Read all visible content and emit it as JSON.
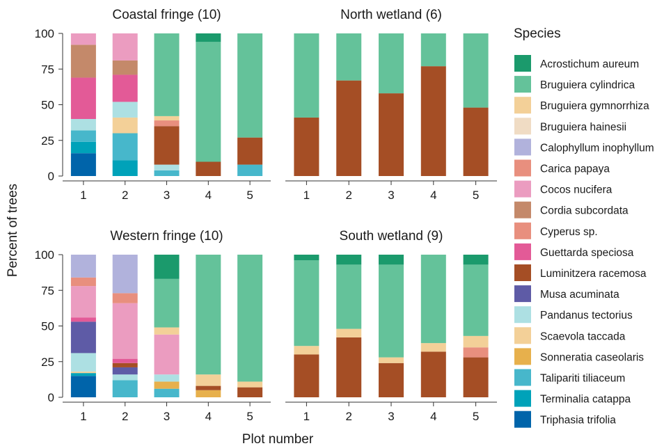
{
  "chart_data": {
    "type": "bar",
    "stacked": true,
    "xlabel": "Plot number",
    "ylabel": "Percent of trees",
    "ylim": [
      0,
      100
    ],
    "yticks": [
      0,
      25,
      50,
      75,
      100
    ],
    "categories": [
      "1",
      "2",
      "3",
      "4",
      "5"
    ],
    "legend": {
      "title": "Species",
      "placement": "right",
      "items": [
        {
          "name": "Acrostichum aureum",
          "color": "#1b9a6c"
        },
        {
          "name": "Bruguiera cylindrica",
          "color": "#64c29a"
        },
        {
          "name": "Bruguiera gymnorrhiza",
          "color": "#f3d098"
        },
        {
          "name": "Bruguiera hainesii",
          "color": "#f0dcc4"
        },
        {
          "name": "Calophyllum inophyllum",
          "color": "#b1b2dc"
        },
        {
          "name": "Carica papaya",
          "color": "#e88f7e"
        },
        {
          "name": "Cocos nucifera",
          "color": "#eb9cc0"
        },
        {
          "name": "Cordia subcordata",
          "color": "#c4896a"
        },
        {
          "name": "Cyperus sp.",
          "color": "#e88f7e"
        },
        {
          "name": "Guettarda speciosa",
          "color": "#e35a97"
        },
        {
          "name": "Luminitzera racemosa",
          "color": "#a54e25"
        },
        {
          "name": "Musa acuminata",
          "color": "#5e5ba6"
        },
        {
          "name": "Pandanus tectorius",
          "color": "#ade0e3"
        },
        {
          "name": "Scaevola taccada",
          "color": "#f3d098"
        },
        {
          "name": "Sonneratia caseolaris",
          "color": "#e7b04c"
        },
        {
          "name": "Talipariti tiliaceum",
          "color": "#47b7cb"
        },
        {
          "name": "Terminalia catappa",
          "color": "#00a2b9"
        },
        {
          "name": "Triphasia trifolia",
          "color": "#0064aa"
        }
      ]
    },
    "panels": [
      {
        "title": "Coastal fringe (10)",
        "bars": [
          {
            "plot": "1",
            "segments": [
              {
                "species": "Triphasia trifolia",
                "value": 16
              },
              {
                "species": "Terminalia catappa",
                "value": 8
              },
              {
                "species": "Talipariti tiliaceum",
                "value": 8
              },
              {
                "species": "Pandanus tectorius",
                "value": 8
              },
              {
                "species": "Guettarda speciosa",
                "value": 29
              },
              {
                "species": "Cordia subcordata",
                "value": 23
              },
              {
                "species": "Cocos nucifera",
                "value": 8
              }
            ]
          },
          {
            "plot": "2",
            "segments": [
              {
                "species": "Terminalia catappa",
                "value": 11
              },
              {
                "species": "Talipariti tiliaceum",
                "value": 19
              },
              {
                "species": "Scaevola taccada",
                "value": 11
              },
              {
                "species": "Pandanus tectorius",
                "value": 11
              },
              {
                "species": "Guettarda speciosa",
                "value": 19
              },
              {
                "species": "Cordia subcordata",
                "value": 10
              },
              {
                "species": "Cocos nucifera",
                "value": 19
              }
            ]
          },
          {
            "plot": "3",
            "segments": [
              {
                "species": "Talipariti tiliaceum",
                "value": 4
              },
              {
                "species": "Pandanus tectorius",
                "value": 4
              },
              {
                "species": "Luminitzera racemosa",
                "value": 27
              },
              {
                "species": "Cyperus sp.",
                "value": 4
              },
              {
                "species": "Scaevola taccada",
                "value": 3
              },
              {
                "species": "Bruguiera cylindrica",
                "value": 58
              }
            ]
          },
          {
            "plot": "4",
            "segments": [
              {
                "species": "Luminitzera racemosa",
                "value": 10
              },
              {
                "species": "Bruguiera cylindrica",
                "value": 84
              },
              {
                "species": "Acrostichum aureum",
                "value": 6
              }
            ]
          },
          {
            "plot": "5",
            "segments": [
              {
                "species": "Talipariti tiliaceum",
                "value": 8
              },
              {
                "species": "Luminitzera racemosa",
                "value": 19
              },
              {
                "species": "Bruguiera cylindrica",
                "value": 73
              }
            ]
          }
        ]
      },
      {
        "title": "North wetland (6)",
        "bars": [
          {
            "plot": "1",
            "segments": [
              {
                "species": "Luminitzera racemosa",
                "value": 41
              },
              {
                "species": "Bruguiera cylindrica",
                "value": 59
              }
            ]
          },
          {
            "plot": "2",
            "segments": [
              {
                "species": "Luminitzera racemosa",
                "value": 67
              },
              {
                "species": "Bruguiera cylindrica",
                "value": 33
              }
            ]
          },
          {
            "plot": "3",
            "segments": [
              {
                "species": "Luminitzera racemosa",
                "value": 58
              },
              {
                "species": "Bruguiera cylindrica",
                "value": 42
              }
            ]
          },
          {
            "plot": "4",
            "segments": [
              {
                "species": "Luminitzera racemosa",
                "value": 77
              },
              {
                "species": "Bruguiera cylindrica",
                "value": 23
              }
            ]
          },
          {
            "plot": "5",
            "segments": [
              {
                "species": "Luminitzera racemosa",
                "value": 48
              },
              {
                "species": "Bruguiera cylindrica",
                "value": 52
              }
            ]
          }
        ]
      },
      {
        "title": "Western fringe (10)",
        "bars": [
          {
            "plot": "1",
            "segments": [
              {
                "species": "Triphasia trifolia",
                "value": 15
              },
              {
                "species": "Terminalia catappa",
                "value": 2
              },
              {
                "species": "Scaevola taccada",
                "value": 1
              },
              {
                "species": "Pandanus tectorius",
                "value": 13
              },
              {
                "species": "Musa acuminata",
                "value": 22
              },
              {
                "species": "Guettarda speciosa",
                "value": 3
              },
              {
                "species": "Cocos nucifera",
                "value": 22
              },
              {
                "species": "Carica papaya",
                "value": 6
              },
              {
                "species": "Calophyllum inophyllum",
                "value": 16
              }
            ]
          },
          {
            "plot": "2",
            "segments": [
              {
                "species": "Talipariti tiliaceum",
                "value": 12
              },
              {
                "species": "Pandanus tectorius",
                "value": 4
              },
              {
                "species": "Musa acuminata",
                "value": 5
              },
              {
                "species": "Luminitzera racemosa",
                "value": 3
              },
              {
                "species": "Guettarda speciosa",
                "value": 3
              },
              {
                "species": "Cocos nucifera",
                "value": 39
              },
              {
                "species": "Carica papaya",
                "value": 7
              },
              {
                "species": "Calophyllum inophyllum",
                "value": 27
              }
            ]
          },
          {
            "plot": "3",
            "segments": [
              {
                "species": "Talipariti tiliaceum",
                "value": 6
              },
              {
                "species": "Sonneratia caseolaris",
                "value": 5
              },
              {
                "species": "Pandanus tectorius",
                "value": 5
              },
              {
                "species": "Cocos nucifera",
                "value": 28
              },
              {
                "species": "Scaevola taccada",
                "value": 5
              },
              {
                "species": "Bruguiera cylindrica",
                "value": 34
              },
              {
                "species": "Acrostichum aureum",
                "value": 17
              }
            ]
          },
          {
            "plot": "4",
            "segments": [
              {
                "species": "Sonneratia caseolaris",
                "value": 5
              },
              {
                "species": "Luminitzera racemosa",
                "value": 3
              },
              {
                "species": "Scaevola taccada",
                "value": 8
              },
              {
                "species": "Bruguiera cylindrica",
                "value": 84
              }
            ]
          },
          {
            "plot": "5",
            "segments": [
              {
                "species": "Luminitzera racemosa",
                "value": 7
              },
              {
                "species": "Scaevola taccada",
                "value": 4
              },
              {
                "species": "Bruguiera cylindrica",
                "value": 89
              }
            ]
          }
        ]
      },
      {
        "title": "South wetland (9)",
        "bars": [
          {
            "plot": "1",
            "segments": [
              {
                "species": "Luminitzera racemosa",
                "value": 30
              },
              {
                "species": "Scaevola taccada",
                "value": 6
              },
              {
                "species": "Bruguiera cylindrica",
                "value": 60
              },
              {
                "species": "Acrostichum aureum",
                "value": 4
              }
            ]
          },
          {
            "plot": "2",
            "segments": [
              {
                "species": "Luminitzera racemosa",
                "value": 42
              },
              {
                "species": "Scaevola taccada",
                "value": 6
              },
              {
                "species": "Bruguiera cylindrica",
                "value": 45
              },
              {
                "species": "Acrostichum aureum",
                "value": 7
              }
            ]
          },
          {
            "plot": "3",
            "segments": [
              {
                "species": "Luminitzera racemosa",
                "value": 24
              },
              {
                "species": "Scaevola taccada",
                "value": 4
              },
              {
                "species": "Bruguiera cylindrica",
                "value": 65
              },
              {
                "species": "Acrostichum aureum",
                "value": 7
              }
            ]
          },
          {
            "plot": "4",
            "segments": [
              {
                "species": "Luminitzera racemosa",
                "value": 32
              },
              {
                "species": "Scaevola taccada",
                "value": 6
              },
              {
                "species": "Bruguiera cylindrica",
                "value": 62
              }
            ]
          },
          {
            "plot": "5",
            "segments": [
              {
                "species": "Luminitzera racemosa",
                "value": 28
              },
              {
                "species": "Carica papaya",
                "value": 7
              },
              {
                "species": "Scaevola taccada",
                "value": 8
              },
              {
                "species": "Bruguiera cylindrica",
                "value": 50
              },
              {
                "species": "Acrostichum aureum",
                "value": 7
              }
            ]
          }
        ]
      }
    ]
  }
}
